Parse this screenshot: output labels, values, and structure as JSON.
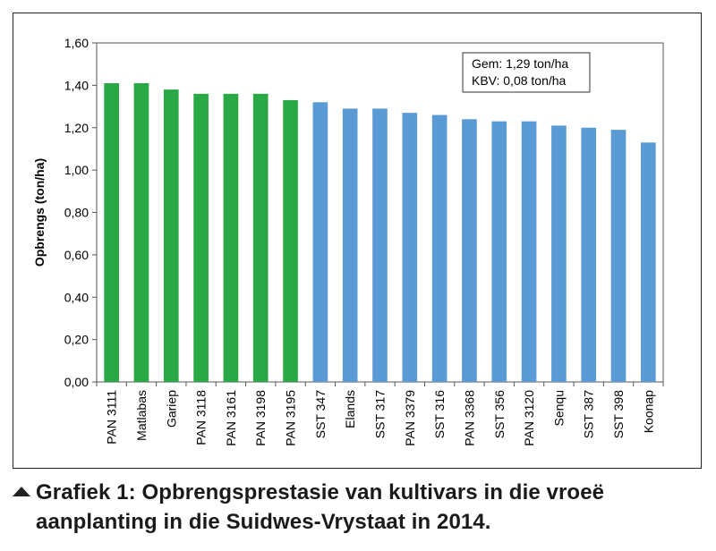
{
  "chart_data": {
    "type": "bar",
    "title": "",
    "xlabel": "",
    "ylabel": "Opbrengs (ton/ha)",
    "ylim": [
      0,
      1.6
    ],
    "yticks": [
      "0,00",
      "0,20",
      "0,40",
      "0,60",
      "0,80",
      "1,00",
      "1,20",
      "1,40",
      "1,60"
    ],
    "categories": [
      "PAN 3111",
      "Matlabas",
      "Gariep",
      "PAN 3118",
      "PAN 3161",
      "PAN 3198",
      "PAN 3195",
      "SST 347",
      "Elands",
      "SST 317",
      "PAN 3379",
      "SST 316",
      "PAN 3368",
      "SST 356",
      "PAN 3120",
      "Senqu",
      "SST 387",
      "SST 398",
      "Koonap"
    ],
    "values": [
      1.41,
      1.41,
      1.38,
      1.36,
      1.36,
      1.36,
      1.33,
      1.32,
      1.29,
      1.29,
      1.27,
      1.26,
      1.24,
      1.23,
      1.23,
      1.21,
      1.2,
      1.19,
      1.13
    ],
    "bar_colors": [
      "#2aa845",
      "#2aa845",
      "#2aa845",
      "#2aa845",
      "#2aa845",
      "#2aa845",
      "#2aa845",
      "#5b9bd5",
      "#5b9bd5",
      "#5b9bd5",
      "#5b9bd5",
      "#5b9bd5",
      "#5b9bd5",
      "#5b9bd5",
      "#5b9bd5",
      "#5b9bd5",
      "#5b9bd5",
      "#5b9bd5",
      "#5b9bd5"
    ],
    "grid": false,
    "legend": "none",
    "annotation": {
      "lines": [
        "Gem: 1,29 ton/ha",
        "KBV:  0,08 ton/ha"
      ],
      "placement": "top-right"
    }
  },
  "caption": {
    "text": "Grafiek 1: Opbrengsprestasie van kultivars in die vroeë aanplanting in die Suidwes-Vrystaat in 2014."
  }
}
